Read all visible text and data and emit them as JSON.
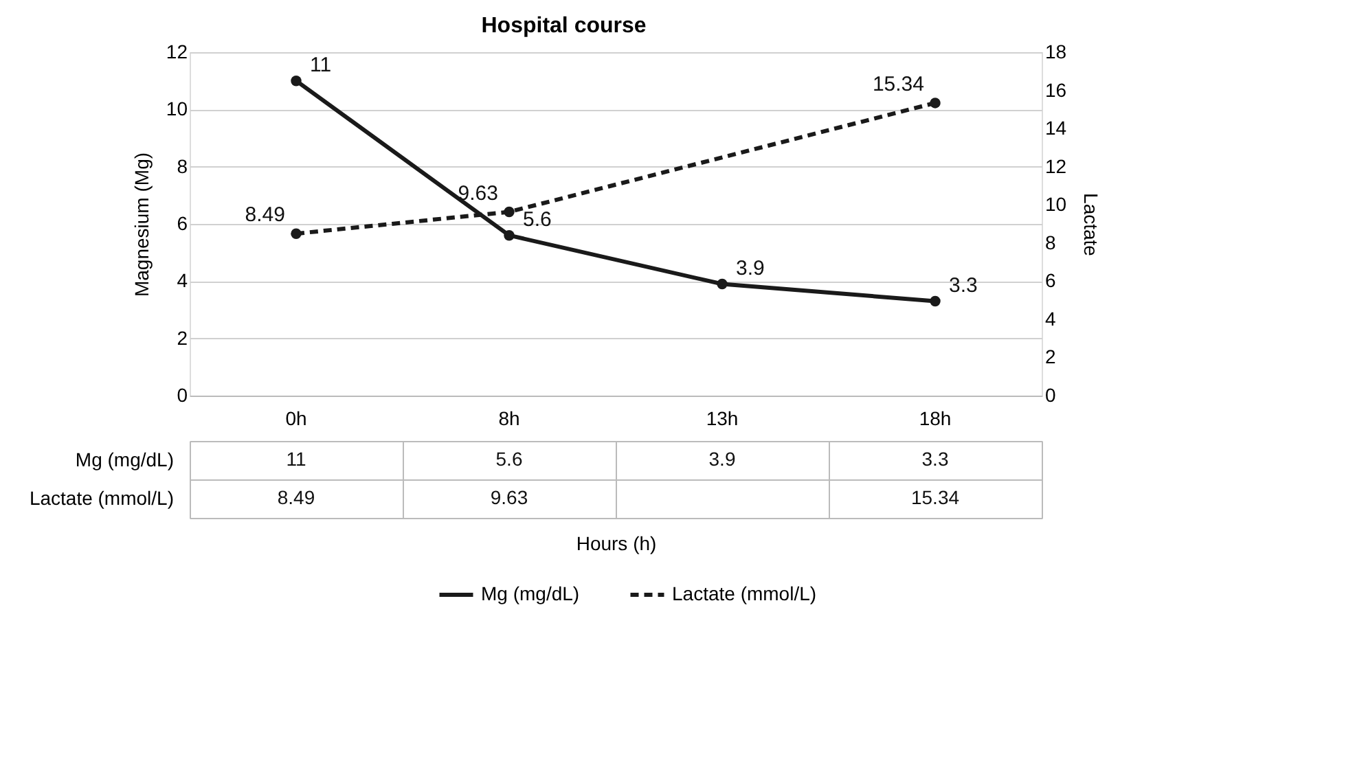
{
  "chart_data": {
    "type": "line",
    "title": "Hospital course",
    "annotations": [
      "Hours (h)"
    ],
    "ylabel": "Magnesium (Mg)",
    "y2label": "Lactate",
    "categories": [
      "0h",
      "8h",
      "13h",
      "18h"
    ],
    "series": [
      {
        "name": "Mg (mg/dL)",
        "color": "#1a1a1a",
        "values": [
          11,
          5.6,
          3.9,
          3.3
        ],
        "value_labels": [
          "11",
          "5.6",
          "3.9",
          "3.3"
        ],
        "line_style": "solid"
      },
      {
        "name": "Lactate (mmol/L)",
        "color": "#1a1a1a",
        "values": [
          8.49,
          9.63,
          null,
          15.34
        ],
        "value_labels": [
          "8.49",
          "9.63",
          null,
          "15.34"
        ],
        "axis": "y2",
        "line_style": "dashed"
      }
    ],
    "ylim": [
      0,
      12
    ],
    "yticks": [
      0,
      2,
      4,
      6,
      8,
      10,
      12
    ],
    "y2lim": [
      0,
      18
    ],
    "y2ticks": [
      0,
      2,
      4,
      6,
      8,
      10,
      12,
      14,
      16,
      18
    ],
    "grid": "y",
    "marker": "circle",
    "legend": "bottom"
  }
}
